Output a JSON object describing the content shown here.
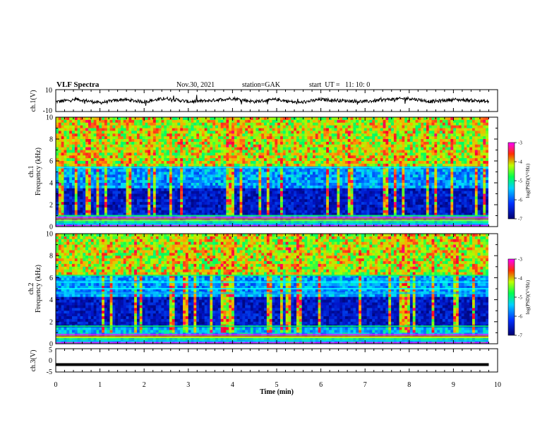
{
  "header": {
    "title": "VLF Spectra",
    "date": "Nov.30, 2021",
    "station": "station=GAK",
    "start": "start  UT =   11: 10: 0"
  },
  "colors": {
    "spectrum_low": "#000064",
    "spectrum_mid": "#00ff66",
    "spectrum_high": "#ff00ff"
  },
  "chart_data": [
    {
      "type": "line",
      "panel": "waveform-ch1",
      "ylabel": "ch.1(V)",
      "ylim": [
        -10,
        10
      ],
      "yticks": [
        "10",
        "-10"
      ],
      "xlim": [
        0,
        10
      ],
      "series": [
        {
          "x": [
            0,
            0.5,
            1,
            1.5,
            2,
            2.5,
            3,
            3.5,
            4,
            4.5,
            5,
            5.5,
            6,
            6.5,
            7,
            7.5,
            8,
            8.5,
            9,
            9.5,
            9.8
          ],
          "values": [
            -1,
            1,
            -2,
            1,
            -1,
            2,
            -1,
            0,
            2,
            -1,
            1,
            -2,
            1,
            0,
            -1,
            1,
            2,
            -1,
            1,
            0,
            -1
          ]
        }
      ]
    },
    {
      "type": "heatmap",
      "panel": "spectrogram-ch1",
      "ylabel_line1": "ch.1",
      "ylabel_line2": "Frequency (kHz)",
      "ylim": [
        0,
        10
      ],
      "yticks": [
        "0",
        "2",
        "4",
        "6",
        "8",
        "10"
      ],
      "xlim": [
        0,
        10
      ],
      "colorbar": {
        "label": "log(PSD)(V²/Hz)",
        "range": [
          -7,
          -3
        ],
        "ticks": [
          "-3",
          "-4",
          "-5",
          "-6",
          "-7"
        ]
      }
    },
    {
      "type": "heatmap",
      "panel": "spectrogram-ch2",
      "ylabel_line1": "ch.2",
      "ylabel_line2": "Frequency (kHz)",
      "ylim": [
        0,
        10
      ],
      "yticks": [
        "0",
        "2",
        "4",
        "6",
        "8",
        "10"
      ],
      "xlim": [
        0,
        10
      ],
      "colorbar": {
        "label": "log(PSD)(V²/Hz)",
        "range": [
          -7,
          -3
        ],
        "ticks": [
          "-3",
          "-4",
          "-5",
          "-6",
          "-7"
        ]
      }
    },
    {
      "type": "line",
      "panel": "waveform-ch3",
      "ylabel": "ch.3(V)",
      "ylim": [
        -5,
        5
      ],
      "yticks": [
        "5",
        "0",
        "-5"
      ],
      "xlim": [
        0,
        10
      ],
      "xlabel": "Time (min)",
      "xticks": [
        "0",
        "1",
        "2",
        "3",
        "4",
        "5",
        "6",
        "7",
        "8",
        "9",
        "10"
      ],
      "series": [
        {
          "x": [
            0,
            9.8
          ],
          "values": [
            -1.8,
            -1.8
          ]
        }
      ]
    }
  ]
}
